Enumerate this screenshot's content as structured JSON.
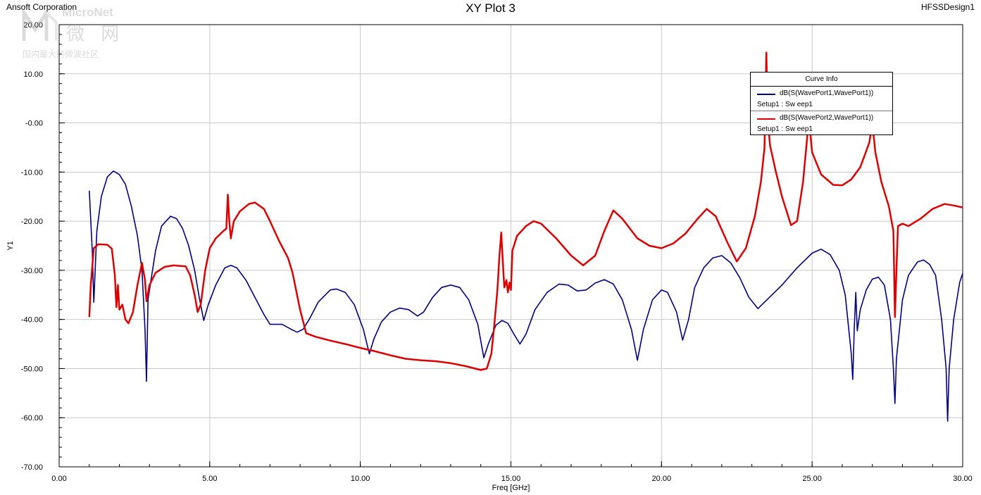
{
  "header": {
    "company": "Ansoft Corporation",
    "design": "HFSSDesign1"
  },
  "watermark": {
    "brand": "MicroNet",
    "chinese": "微 网",
    "subtitle": "国内最大的微波社区"
  },
  "legend": {
    "title": "Curve Info",
    "entries": [
      {
        "name": "dB(S(WavePort1,WavePort1))",
        "sub": "Setup1 : Sw eep1",
        "color": "#000080"
      },
      {
        "name": "dB(S(WavePort2,WavePort1))",
        "sub": "Setup1 : Sw eep1",
        "color": "#dd0000"
      }
    ]
  },
  "chart_data": {
    "type": "line",
    "title": "XY Plot 3",
    "xlabel": "Freq [GHz]",
    "ylabel": "Y1",
    "xlim": [
      0,
      30
    ],
    "ylim": [
      -70,
      20
    ],
    "grid": true,
    "legend_position": "top-right",
    "xticks": [
      "0.00",
      "5.00",
      "10.00",
      "15.00",
      "20.00",
      "25.00",
      "30.00"
    ],
    "yticks": [
      "20.00",
      "10.00",
      "-0.00",
      "-10.00",
      "-20.00",
      "-30.00",
      "-40.00",
      "-50.00",
      "-60.00",
      "-70.00"
    ],
    "series": [
      {
        "name": "dB(S(WavePort1,WavePort1))",
        "color": "#000080",
        "points": [
          [
            1.0,
            -13.8
          ],
          [
            1.1,
            -26
          ],
          [
            1.15,
            -36.5
          ],
          [
            1.25,
            -22
          ],
          [
            1.4,
            -15
          ],
          [
            1.6,
            -11
          ],
          [
            1.8,
            -9.8
          ],
          [
            2.0,
            -10.5
          ],
          [
            2.2,
            -12.5
          ],
          [
            2.4,
            -17
          ],
          [
            2.6,
            -23
          ],
          [
            2.75,
            -30
          ],
          [
            2.85,
            -42
          ],
          [
            2.9,
            -52.6
          ],
          [
            2.95,
            -36
          ],
          [
            3.05,
            -32
          ],
          [
            3.2,
            -26
          ],
          [
            3.4,
            -21
          ],
          [
            3.7,
            -19
          ],
          [
            3.9,
            -19.5
          ],
          [
            4.1,
            -21.5
          ],
          [
            4.3,
            -25
          ],
          [
            4.5,
            -30
          ],
          [
            4.65,
            -35.5
          ],
          [
            4.8,
            -40.2
          ],
          [
            4.95,
            -37
          ],
          [
            5.2,
            -33
          ],
          [
            5.5,
            -29.5
          ],
          [
            5.7,
            -29
          ],
          [
            5.9,
            -29.5
          ],
          [
            6.2,
            -32
          ],
          [
            6.5,
            -35.5
          ],
          [
            6.8,
            -39
          ],
          [
            7.0,
            -41
          ],
          [
            7.4,
            -41
          ],
          [
            7.7,
            -42
          ],
          [
            7.9,
            -42.6
          ],
          [
            8.1,
            -42
          ],
          [
            8.3,
            -40
          ],
          [
            8.6,
            -36.5
          ],
          [
            9.0,
            -34
          ],
          [
            9.2,
            -33.8
          ],
          [
            9.5,
            -34.5
          ],
          [
            9.8,
            -37
          ],
          [
            10.1,
            -42
          ],
          [
            10.3,
            -47
          ],
          [
            10.45,
            -44
          ],
          [
            10.7,
            -40.5
          ],
          [
            11.0,
            -38.5
          ],
          [
            11.3,
            -37.7
          ],
          [
            11.6,
            -38
          ],
          [
            11.9,
            -39.3
          ],
          [
            12.1,
            -38.5
          ],
          [
            12.4,
            -35.5
          ],
          [
            12.7,
            -33.5
          ],
          [
            13.0,
            -33
          ],
          [
            13.3,
            -33.5
          ],
          [
            13.6,
            -36
          ],
          [
            13.9,
            -41
          ],
          [
            14.1,
            -47.8
          ],
          [
            14.25,
            -45
          ],
          [
            14.5,
            -41.2
          ],
          [
            14.7,
            -40.2
          ],
          [
            14.9,
            -40.8
          ],
          [
            15.1,
            -43
          ],
          [
            15.3,
            -45
          ],
          [
            15.5,
            -43
          ],
          [
            15.8,
            -38
          ],
          [
            16.2,
            -34.5
          ],
          [
            16.6,
            -32.8
          ],
          [
            16.9,
            -33
          ],
          [
            17.2,
            -34.2
          ],
          [
            17.5,
            -34
          ],
          [
            17.8,
            -32.6
          ],
          [
            18.1,
            -31.9
          ],
          [
            18.4,
            -32.8
          ],
          [
            18.7,
            -36
          ],
          [
            19.0,
            -42
          ],
          [
            19.2,
            -48.3
          ],
          [
            19.4,
            -42
          ],
          [
            19.7,
            -36
          ],
          [
            20.0,
            -34
          ],
          [
            20.2,
            -34.5
          ],
          [
            20.5,
            -38.5
          ],
          [
            20.7,
            -44.2
          ],
          [
            20.9,
            -40
          ],
          [
            21.1,
            -33.5
          ],
          [
            21.4,
            -29.5
          ],
          [
            21.7,
            -27.5
          ],
          [
            22.0,
            -27
          ],
          [
            22.3,
            -28.5
          ],
          [
            22.6,
            -31.5
          ],
          [
            22.9,
            -35.5
          ],
          [
            23.2,
            -37.8
          ],
          [
            23.5,
            -36
          ],
          [
            24.0,
            -33
          ],
          [
            24.5,
            -29.5
          ],
          [
            25.0,
            -26.5
          ],
          [
            25.3,
            -25.7
          ],
          [
            25.6,
            -26.8
          ],
          [
            25.9,
            -30
          ],
          [
            26.1,
            -35
          ],
          [
            26.3,
            -47
          ],
          [
            26.35,
            -52.2
          ],
          [
            26.4,
            -42
          ],
          [
            26.45,
            -34.5
          ],
          [
            26.5,
            -42.3
          ],
          [
            26.6,
            -38
          ],
          [
            26.8,
            -34
          ],
          [
            27.0,
            -31.8
          ],
          [
            27.2,
            -31.4
          ],
          [
            27.4,
            -33
          ],
          [
            27.6,
            -40
          ],
          [
            27.7,
            -50
          ],
          [
            27.75,
            -57.1
          ],
          [
            27.8,
            -48
          ],
          [
            28.0,
            -36
          ],
          [
            28.2,
            -31
          ],
          [
            28.5,
            -28.3
          ],
          [
            28.7,
            -27.9
          ],
          [
            28.9,
            -28.8
          ],
          [
            29.1,
            -31
          ],
          [
            29.3,
            -40
          ],
          [
            29.45,
            -50
          ],
          [
            29.5,
            -60.7
          ],
          [
            29.55,
            -50
          ],
          [
            29.7,
            -40
          ],
          [
            29.9,
            -32.5
          ],
          [
            30.0,
            -30.6
          ]
        ]
      },
      {
        "name": "dB(S(WavePort2,WavePort1))",
        "color": "#dd0000",
        "points": [
          [
            1.0,
            -39.5
          ],
          [
            1.05,
            -33
          ],
          [
            1.15,
            -25.5
          ],
          [
            1.3,
            -24.7
          ],
          [
            1.6,
            -24.8
          ],
          [
            1.75,
            -25.6
          ],
          [
            1.85,
            -31
          ],
          [
            1.9,
            -37.5
          ],
          [
            1.95,
            -33
          ],
          [
            2.0,
            -38
          ],
          [
            2.1,
            -37
          ],
          [
            2.2,
            -40
          ],
          [
            2.3,
            -40.8
          ],
          [
            2.45,
            -38.5
          ],
          [
            2.6,
            -33
          ],
          [
            2.75,
            -28.5
          ],
          [
            2.85,
            -32
          ],
          [
            2.9,
            -36.3
          ],
          [
            3.0,
            -33
          ],
          [
            3.2,
            -30.5
          ],
          [
            3.5,
            -29.3
          ],
          [
            3.8,
            -29
          ],
          [
            4.2,
            -29.2
          ],
          [
            4.35,
            -31
          ],
          [
            4.5,
            -35
          ],
          [
            4.6,
            -38.5
          ],
          [
            4.7,
            -37
          ],
          [
            4.85,
            -30
          ],
          [
            5.0,
            -25.5
          ],
          [
            5.2,
            -23.5
          ],
          [
            5.45,
            -22
          ],
          [
            5.55,
            -21.5
          ],
          [
            5.6,
            -14.6
          ],
          [
            5.65,
            -20
          ],
          [
            5.7,
            -23.5
          ],
          [
            5.8,
            -20
          ],
          [
            6.0,
            -18
          ],
          [
            6.3,
            -16.5
          ],
          [
            6.5,
            -16.2
          ],
          [
            6.8,
            -17.5
          ],
          [
            7.0,
            -20
          ],
          [
            7.3,
            -24
          ],
          [
            7.6,
            -27.5
          ],
          [
            7.75,
            -30.5
          ],
          [
            8.0,
            -38
          ],
          [
            8.2,
            -42.8
          ],
          [
            8.5,
            -43.5
          ],
          [
            9.0,
            -44.3
          ],
          [
            9.5,
            -45
          ],
          [
            10.0,
            -45.8
          ],
          [
            10.5,
            -46.5
          ],
          [
            11.0,
            -47.3
          ],
          [
            11.5,
            -48
          ],
          [
            12.0,
            -48.3
          ],
          [
            12.5,
            -48.5
          ],
          [
            13.0,
            -48.9
          ],
          [
            13.5,
            -49.5
          ],
          [
            14.0,
            -50.3
          ],
          [
            14.2,
            -50
          ],
          [
            14.35,
            -47
          ],
          [
            14.45,
            -41
          ],
          [
            14.55,
            -34
          ],
          [
            14.62,
            -27
          ],
          [
            14.68,
            -22.3
          ],
          [
            14.72,
            -27
          ],
          [
            14.78,
            -33.5
          ],
          [
            14.85,
            -32
          ],
          [
            14.9,
            -34.5
          ],
          [
            14.95,
            -32.5
          ],
          [
            15.0,
            -34
          ],
          [
            15.05,
            -26
          ],
          [
            15.2,
            -23
          ],
          [
            15.5,
            -21
          ],
          [
            15.75,
            -20
          ],
          [
            16.0,
            -20.5
          ],
          [
            16.5,
            -23.5
          ],
          [
            17.0,
            -27
          ],
          [
            17.4,
            -29
          ],
          [
            17.8,
            -27
          ],
          [
            18.1,
            -22
          ],
          [
            18.4,
            -17.8
          ],
          [
            18.7,
            -19.5
          ],
          [
            19.2,
            -23.5
          ],
          [
            19.6,
            -25
          ],
          [
            20.0,
            -25.5
          ],
          [
            20.4,
            -24.5
          ],
          [
            20.8,
            -22.5
          ],
          [
            21.2,
            -19.5
          ],
          [
            21.5,
            -17.5
          ],
          [
            21.8,
            -19
          ],
          [
            22.2,
            -24.5
          ],
          [
            22.5,
            -28.2
          ],
          [
            22.8,
            -25.5
          ],
          [
            23.1,
            -19
          ],
          [
            23.3,
            -12
          ],
          [
            23.42,
            -5
          ],
          [
            23.48,
            14.3
          ],
          [
            23.52,
            2
          ],
          [
            23.6,
            -4.5
          ],
          [
            23.8,
            -10
          ],
          [
            24.0,
            -15
          ],
          [
            24.3,
            -20.8
          ],
          [
            24.5,
            -20
          ],
          [
            24.7,
            -12
          ],
          [
            24.85,
            -2
          ],
          [
            24.9,
            0.5
          ],
          [
            25.0,
            -6
          ],
          [
            25.3,
            -10.5
          ],
          [
            25.7,
            -12.6
          ],
          [
            26.0,
            -12.7
          ],
          [
            26.3,
            -11.5
          ],
          [
            26.6,
            -9
          ],
          [
            26.9,
            -4
          ],
          [
            27.0,
            0
          ],
          [
            27.1,
            -6
          ],
          [
            27.3,
            -12
          ],
          [
            27.55,
            -17
          ],
          [
            27.7,
            -22
          ],
          [
            27.75,
            -39.5
          ],
          [
            27.8,
            -30
          ],
          [
            27.85,
            -21
          ],
          [
            28.0,
            -20.5
          ],
          [
            28.2,
            -21
          ],
          [
            28.6,
            -19.5
          ],
          [
            29.0,
            -17.5
          ],
          [
            29.4,
            -16.5
          ],
          [
            29.7,
            -16.8
          ],
          [
            30.0,
            -17.2
          ]
        ]
      }
    ]
  }
}
